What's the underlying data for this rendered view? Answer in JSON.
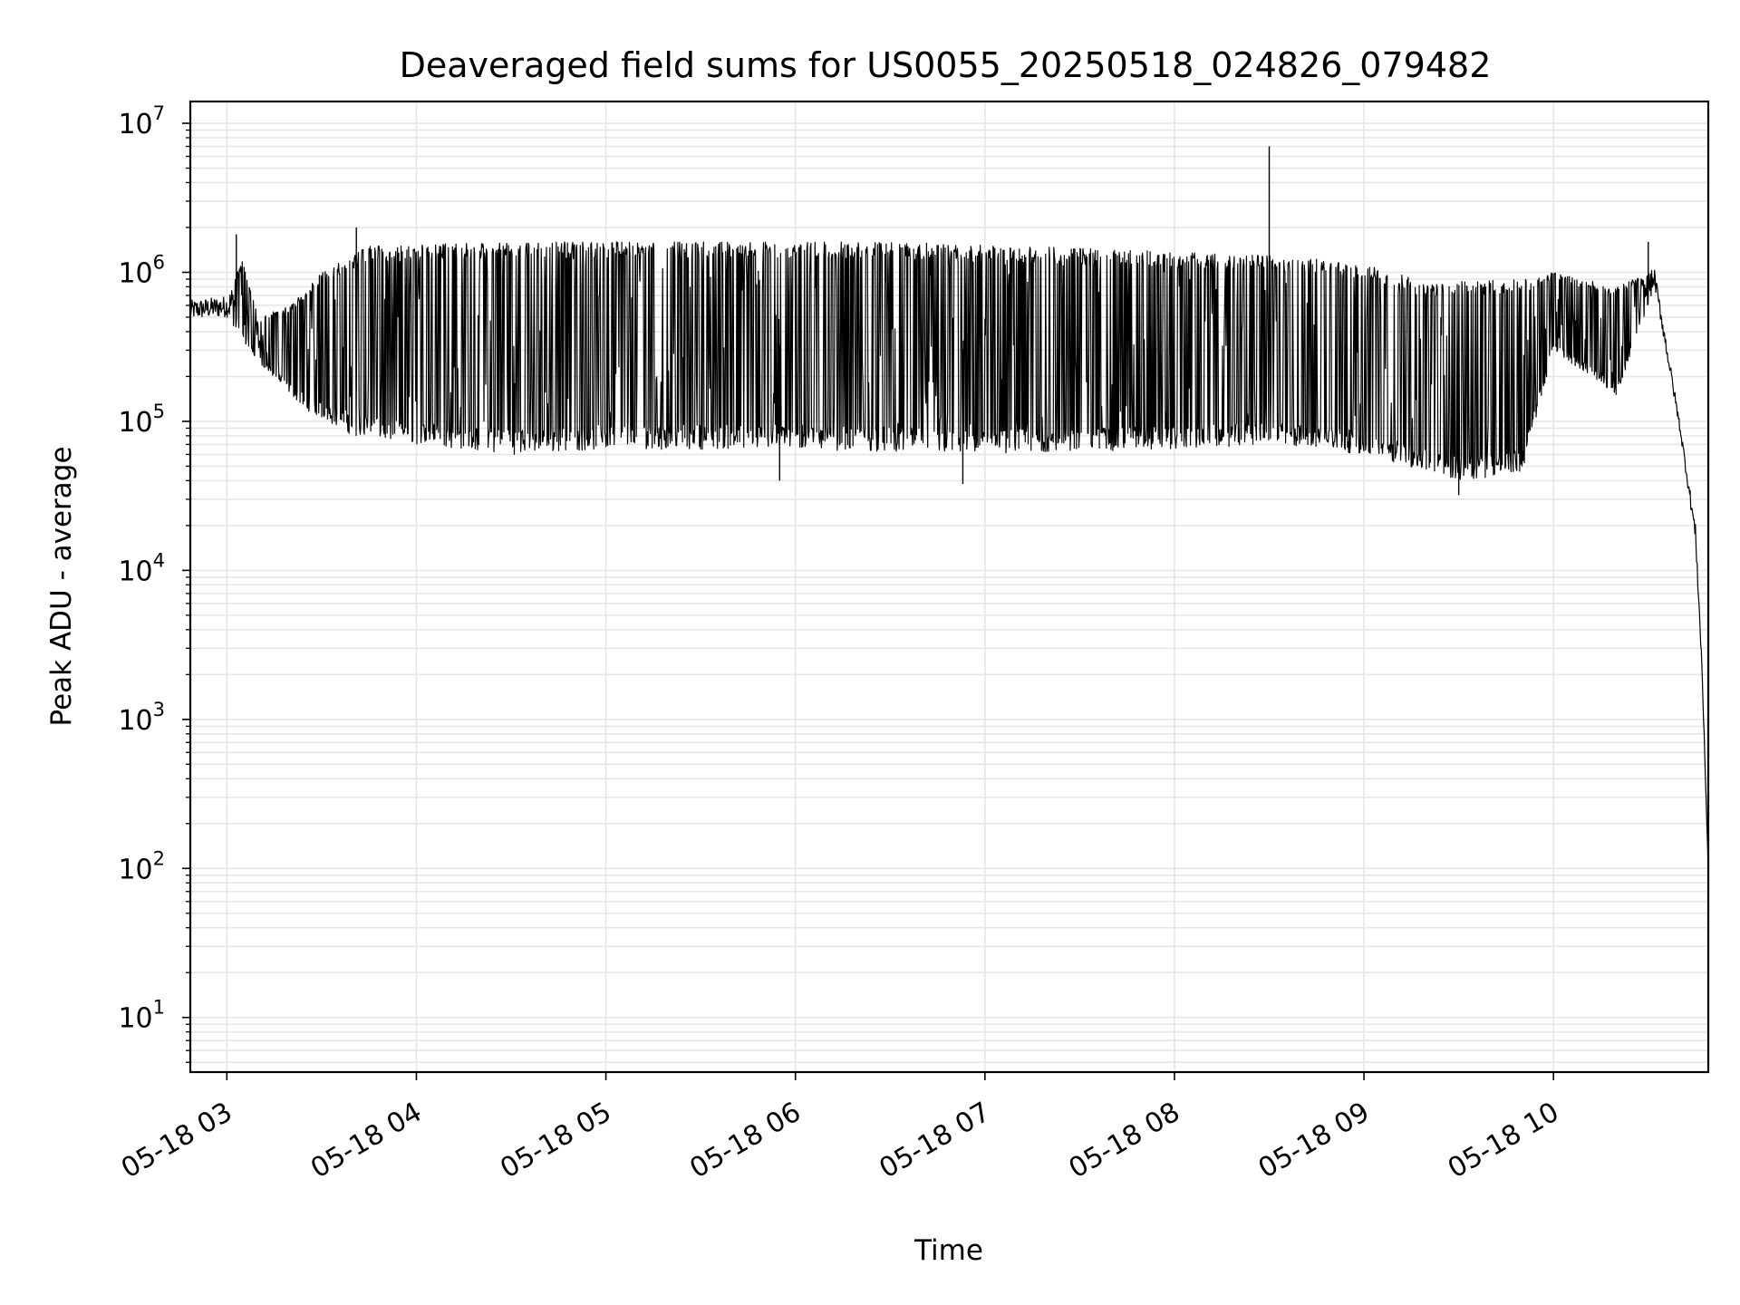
{
  "chart_data": {
    "type": "line",
    "title": "Deaveraged field sums for US0055_20250518_024826_079482",
    "xlabel": "Time",
    "ylabel": "Peak ADU - average",
    "yscale": "log",
    "ylim": [
      4.3,
      14000000
    ],
    "xlim": [
      "2025-05-18T02:48:26",
      "2025-05-18T10:49:00"
    ],
    "grid": true,
    "grid_color": "#e6e6e6",
    "line_color": "#000000",
    "x_ticks": [
      {
        "time": "2025-05-18T03:00:00",
        "label": "05-18 03"
      },
      {
        "time": "2025-05-18T04:00:00",
        "label": "05-18 04"
      },
      {
        "time": "2025-05-18T05:00:00",
        "label": "05-18 05"
      },
      {
        "time": "2025-05-18T06:00:00",
        "label": "05-18 06"
      },
      {
        "time": "2025-05-18T07:00:00",
        "label": "05-18 07"
      },
      {
        "time": "2025-05-18T08:00:00",
        "label": "05-18 08"
      },
      {
        "time": "2025-05-18T09:00:00",
        "label": "05-18 09"
      },
      {
        "time": "2025-05-18T10:00:00",
        "label": "05-18 10"
      }
    ],
    "y_ticks": [
      {
        "value": 10,
        "base": "10",
        "exp": "1"
      },
      {
        "value": 100,
        "base": "10",
        "exp": "2"
      },
      {
        "value": 1000,
        "base": "10",
        "exp": "3"
      },
      {
        "value": 10000,
        "base": "10",
        "exp": "4"
      },
      {
        "value": 100000,
        "base": "10",
        "exp": "5"
      },
      {
        "value": 1000000,
        "base": "10",
        "exp": "6"
      },
      {
        "value": 10000000,
        "base": "10",
        "exp": "7"
      }
    ],
    "series": [
      {
        "style": "thin line with rapid oscillation between an upper envelope and a lower envelope",
        "upper_envelope": [
          {
            "time": "2025-05-18T02:48:26",
            "y": 650000
          },
          {
            "time": "2025-05-18T03:00:00",
            "y": 700000
          },
          {
            "time": "2025-05-18T03:05:00",
            "y": 1200000
          },
          {
            "time": "2025-05-18T03:10:00",
            "y": 500000
          },
          {
            "time": "2025-05-18T03:20:00",
            "y": 600000
          },
          {
            "time": "2025-05-18T03:30:00",
            "y": 1000000
          },
          {
            "time": "2025-05-18T03:45:00",
            "y": 1500000
          },
          {
            "time": "2025-05-18T04:30:00",
            "y": 1600000
          },
          {
            "time": "2025-05-18T05:30:00",
            "y": 1600000
          },
          {
            "time": "2025-05-18T06:30:00",
            "y": 1600000
          },
          {
            "time": "2025-05-18T07:30:00",
            "y": 1450000
          },
          {
            "time": "2025-05-18T08:30:00",
            "y": 1300000
          },
          {
            "time": "2025-05-18T09:00:00",
            "y": 1150000
          },
          {
            "time": "2025-05-18T09:20:00",
            "y": 850000
          },
          {
            "time": "2025-05-18T09:50:00",
            "y": 900000
          },
          {
            "time": "2025-05-18T10:00:00",
            "y": 1000000
          },
          {
            "time": "2025-05-18T10:20:00",
            "y": 800000
          },
          {
            "time": "2025-05-18T10:32:00",
            "y": 1050000
          },
          {
            "time": "2025-05-18T10:40:00",
            "y": 100000
          },
          {
            "time": "2025-05-18T10:45:00",
            "y": 20000
          },
          {
            "time": "2025-05-18T10:47:00",
            "y": 2500
          },
          {
            "time": "2025-05-18T10:49:00",
            "y": 100
          }
        ],
        "lower_envelope": [
          {
            "time": "2025-05-18T02:48:26",
            "y": 480000
          },
          {
            "time": "2025-05-18T03:00:00",
            "y": 500000
          },
          {
            "time": "2025-05-18T03:10:00",
            "y": 250000
          },
          {
            "time": "2025-05-18T03:25:00",
            "y": 120000
          },
          {
            "time": "2025-05-18T03:40:00",
            "y": 80000
          },
          {
            "time": "2025-05-18T04:00:00",
            "y": 70000
          },
          {
            "time": "2025-05-18T04:30:00",
            "y": 60000
          },
          {
            "time": "2025-05-18T05:00:00",
            "y": 65000
          },
          {
            "time": "2025-05-18T06:00:00",
            "y": 65000
          },
          {
            "time": "2025-05-18T07:00:00",
            "y": 60000
          },
          {
            "time": "2025-05-18T08:00:00",
            "y": 65000
          },
          {
            "time": "2025-05-18T08:30:00",
            "y": 70000
          },
          {
            "time": "2025-05-18T09:00:00",
            "y": 60000
          },
          {
            "time": "2025-05-18T09:30:00",
            "y": 40000
          },
          {
            "time": "2025-05-18T09:50:00",
            "y": 45000
          },
          {
            "time": "2025-05-18T10:00:00",
            "y": 300000
          },
          {
            "time": "2025-05-18T10:20:00",
            "y": 150000
          },
          {
            "time": "2025-05-18T10:32:00",
            "y": 800000
          },
          {
            "time": "2025-05-18T10:40:00",
            "y": 85000
          },
          {
            "time": "2025-05-18T10:45:00",
            "y": 15000
          },
          {
            "time": "2025-05-18T10:47:00",
            "y": 2000
          },
          {
            "time": "2025-05-18T10:49:00",
            "y": 100
          }
        ],
        "notable_points": [
          {
            "time": "2025-05-18T03:03:00",
            "y": 1800000
          },
          {
            "time": "2025-05-18T03:41:00",
            "y": 2000000
          },
          {
            "time": "2025-05-18T05:55:00",
            "y": 40000
          },
          {
            "time": "2025-05-18T06:53:00",
            "y": 38000
          },
          {
            "time": "2025-05-18T08:30:00",
            "y": 7000000
          },
          {
            "time": "2025-05-18T09:30:00",
            "y": 32000
          },
          {
            "time": "2025-05-18T10:30:00",
            "y": 1600000
          }
        ]
      }
    ]
  }
}
